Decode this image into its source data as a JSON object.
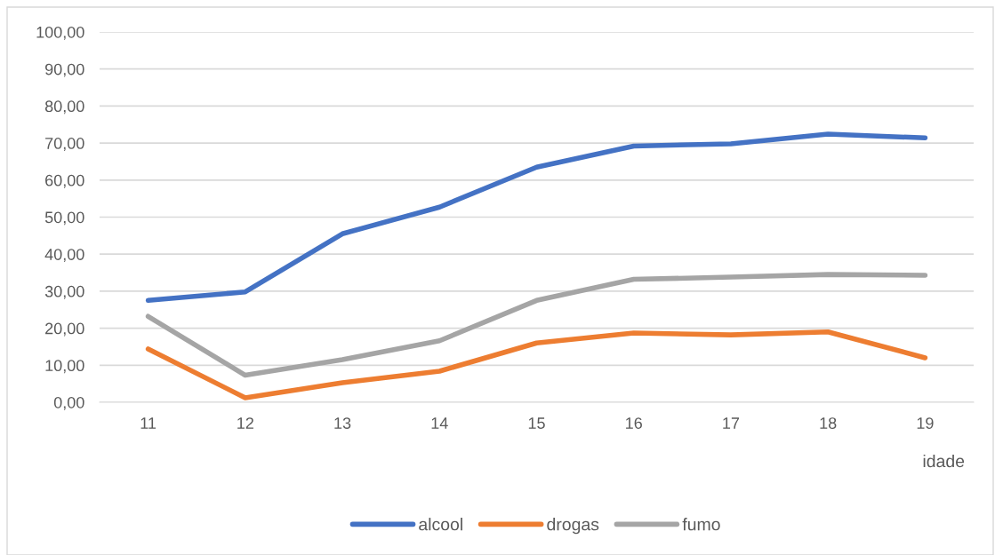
{
  "chart_data": {
    "type": "line",
    "xlabel": "idade",
    "categories": [
      "11",
      "12",
      "13",
      "14",
      "15",
      "16",
      "17",
      "18",
      "19"
    ],
    "series": [
      {
        "name": "alcool",
        "color": "#4472c4",
        "values": [
          27.5,
          29.8,
          45.5,
          52.7,
          63.5,
          69.2,
          69.8,
          72.4,
          71.4
        ]
      },
      {
        "name": "drogas",
        "color": "#ed7d31",
        "values": [
          14.4,
          1.2,
          5.3,
          8.4,
          16.0,
          18.7,
          18.2,
          19.0,
          12.0
        ]
      },
      {
        "name": "fumo",
        "color": "#a5a5a5",
        "values": [
          23.2,
          7.3,
          11.5,
          16.6,
          27.5,
          33.2,
          33.8,
          34.5,
          34.3
        ]
      }
    ],
    "ylim": [
      0,
      100
    ],
    "yticks": [
      {
        "value": 0,
        "label": "0,00"
      },
      {
        "value": 10,
        "label": "10,00"
      },
      {
        "value": 20,
        "label": "20,00"
      },
      {
        "value": 30,
        "label": "30,00"
      },
      {
        "value": 40,
        "label": "40,00"
      },
      {
        "value": 50,
        "label": "50,00"
      },
      {
        "value": 60,
        "label": "60,00"
      },
      {
        "value": 70,
        "label": "70,00"
      },
      {
        "value": 80,
        "label": "80,00"
      },
      {
        "value": 90,
        "label": "90,00"
      },
      {
        "value": 100,
        "label": "100,00"
      }
    ],
    "grid": "y",
    "legend": "bottom",
    "marker": "none",
    "line_style": "solid"
  }
}
